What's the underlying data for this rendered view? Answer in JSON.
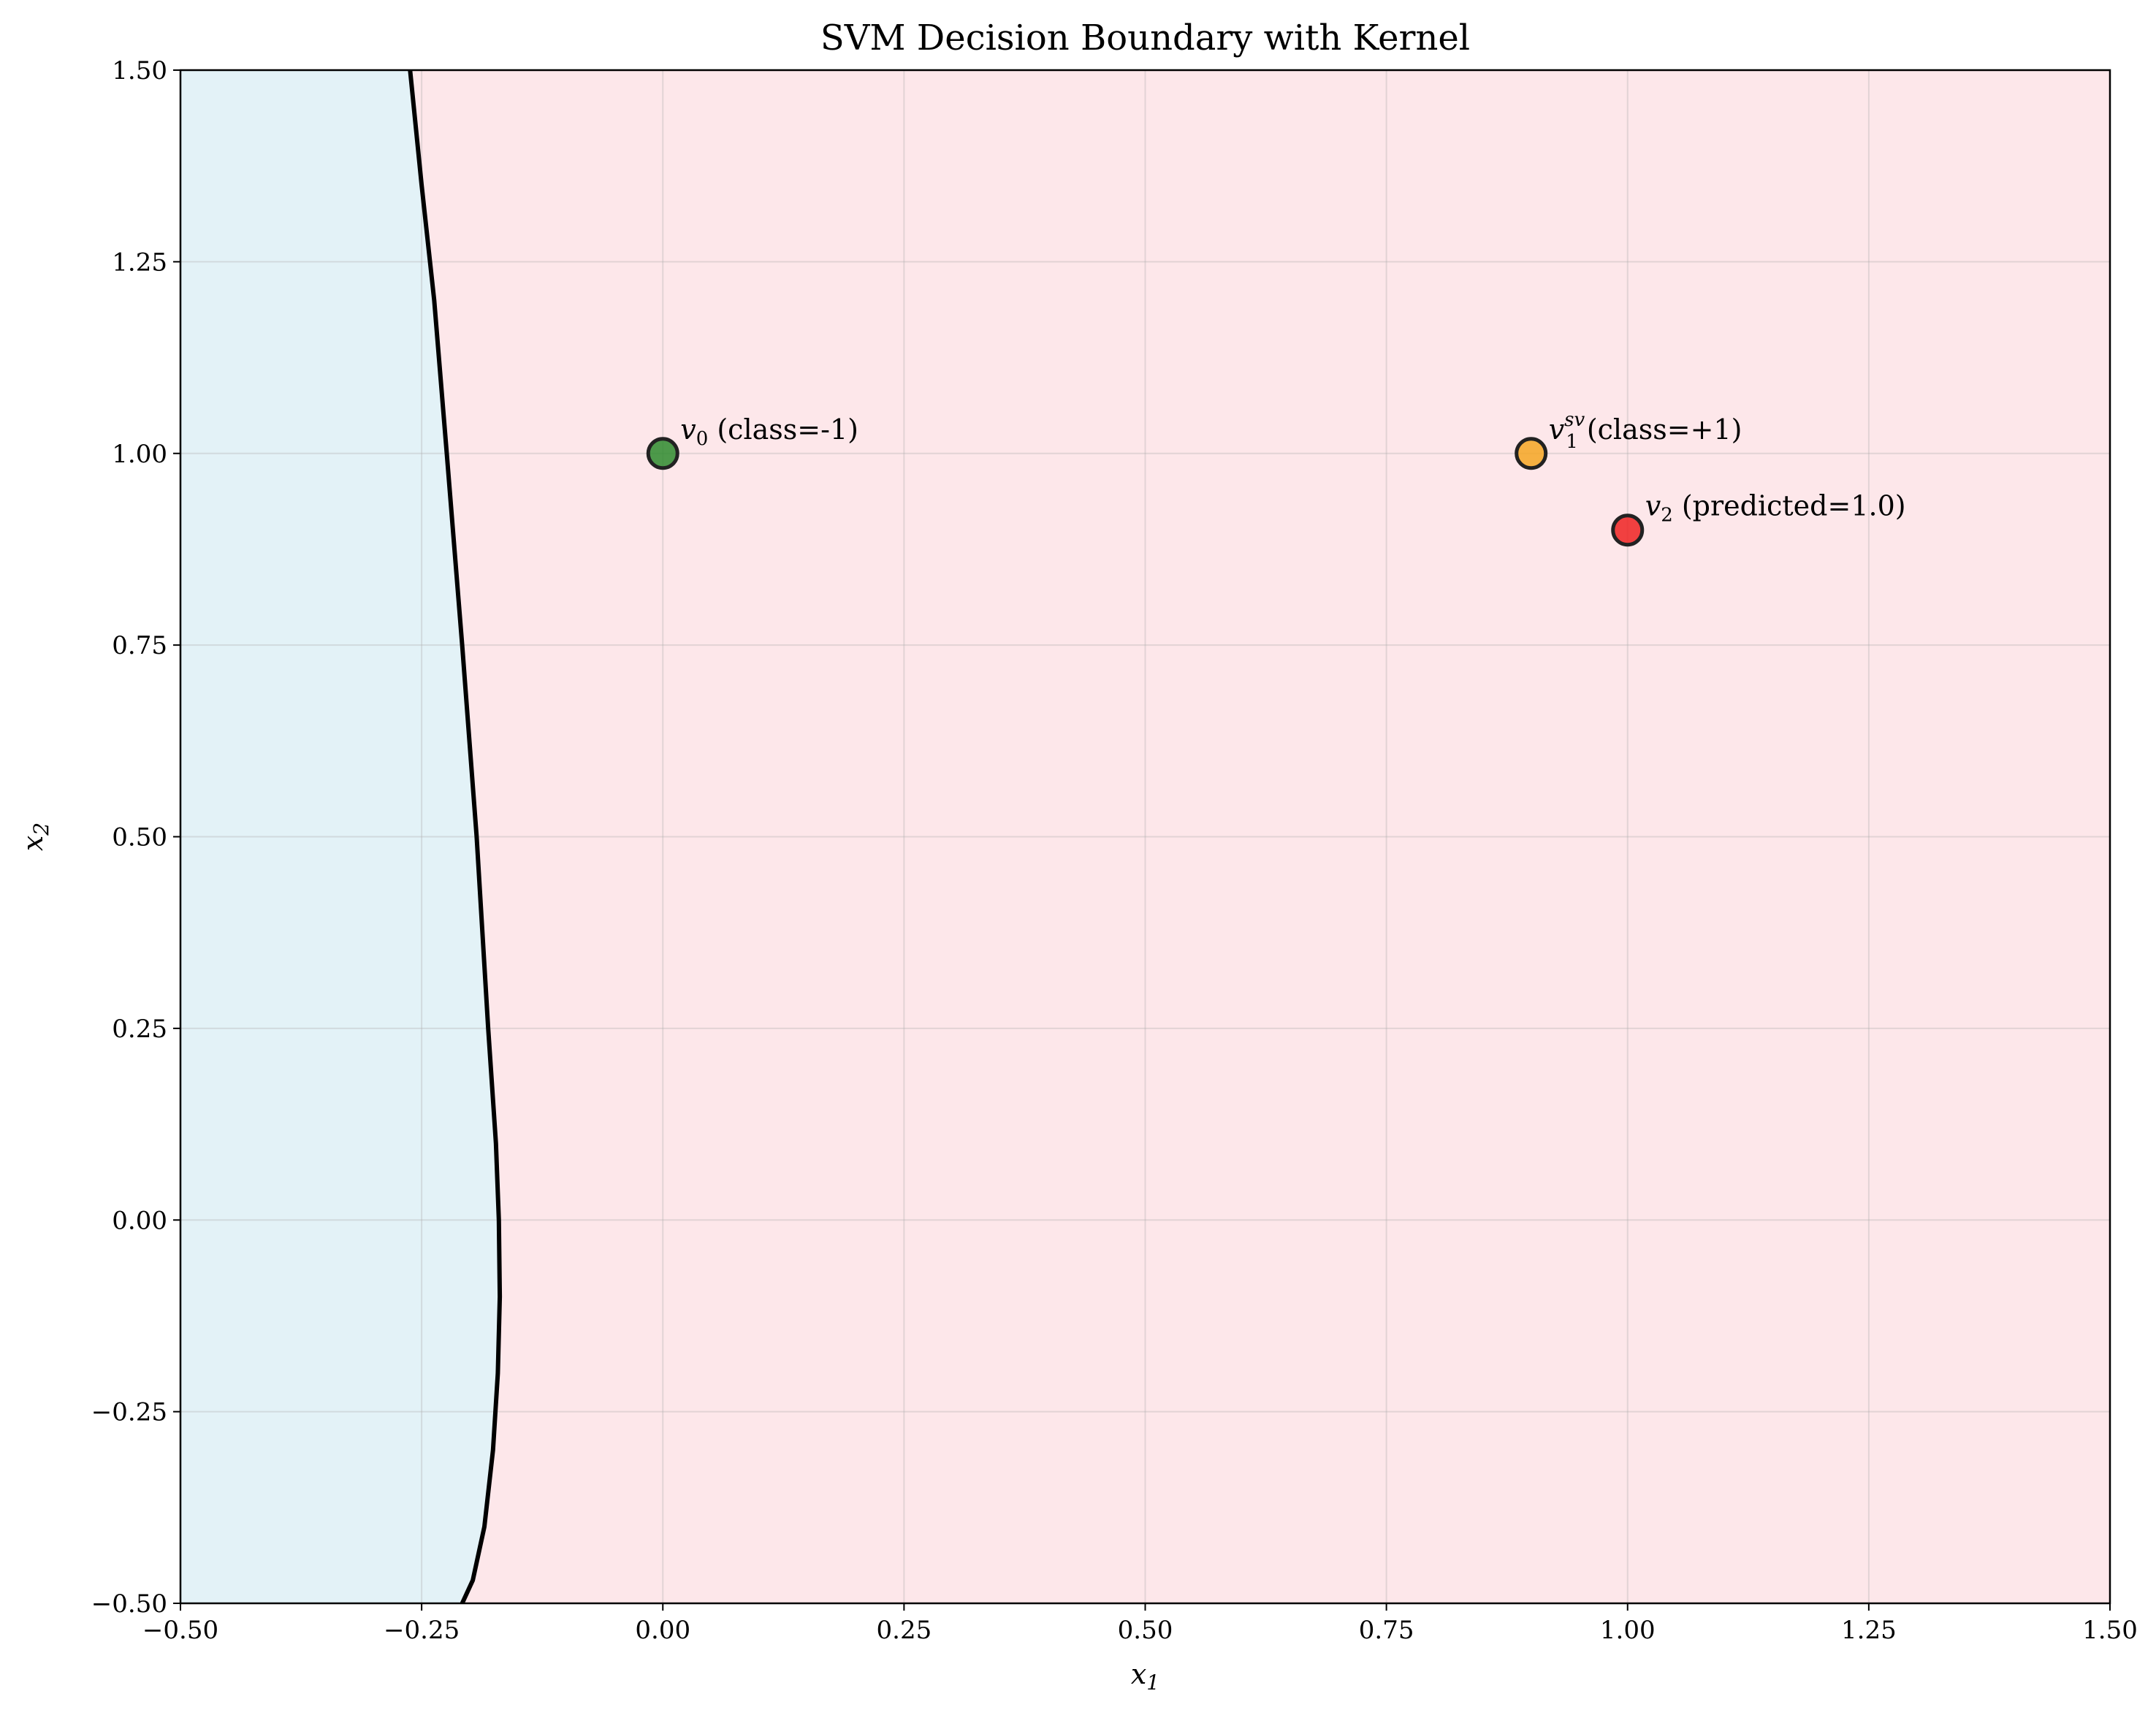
{
  "chart_data": {
    "type": "scatter",
    "title": "SVM Decision Boundary with Kernel",
    "xlabel": "x",
    "xlabel_sub": "1",
    "ylabel": "x",
    "ylabel_sub": "2",
    "xlim": [
      -0.5,
      1.5
    ],
    "ylim": [
      -0.5,
      1.5
    ],
    "grid": true,
    "x_ticks": [
      -0.5,
      -0.25,
      0.0,
      0.25,
      0.5,
      0.75,
      1.0,
      1.25,
      1.5
    ],
    "y_ticks": [
      -0.5,
      -0.25,
      0.0,
      0.25,
      0.5,
      0.75,
      1.0,
      1.25,
      1.5
    ],
    "x_tick_labels": [
      "−0.50",
      "−0.25",
      "0.00",
      "0.25",
      "0.50",
      "0.75",
      "1.00",
      "1.25",
      "1.50"
    ],
    "y_tick_labels": [
      "−0.50",
      "−0.25",
      "0.00",
      "0.25",
      "0.50",
      "0.75",
      "1.00",
      "1.25",
      "1.50"
    ],
    "regions": {
      "negative_color": "#e3f2f7",
      "positive_color": "#fde7ea"
    },
    "decision_boundary": {
      "color": "#000000",
      "points": [
        [
          -0.262,
          1.5
        ],
        [
          -0.25,
          1.35
        ],
        [
          -0.237,
          1.2
        ],
        [
          -0.224,
          1.0
        ],
        [
          -0.208,
          0.75
        ],
        [
          -0.193,
          0.5
        ],
        [
          -0.181,
          0.25
        ],
        [
          -0.173,
          0.1
        ],
        [
          -0.17,
          0.0
        ],
        [
          -0.169,
          -0.1
        ],
        [
          -0.171,
          -0.2
        ],
        [
          -0.176,
          -0.3
        ],
        [
          -0.185,
          -0.4
        ],
        [
          -0.197,
          -0.47
        ],
        [
          -0.208,
          -0.5
        ]
      ]
    },
    "points": [
      {
        "x": 0.0,
        "y": 1.0,
        "color": "#2e8b2e",
        "symbol": "v",
        "sub": "0",
        "sup": "",
        "text": " (class=-1)"
      },
      {
        "x": 0.9,
        "y": 1.0,
        "color": "#f5a623",
        "symbol": "v",
        "sub": "1",
        "sup": "sv",
        "text": " (class=+1)"
      },
      {
        "x": 1.0,
        "y": 0.9,
        "color": "#ee2222",
        "symbol": "v",
        "sub": "2",
        "sup": "",
        "text": " (predicted=1.0)"
      }
    ]
  }
}
